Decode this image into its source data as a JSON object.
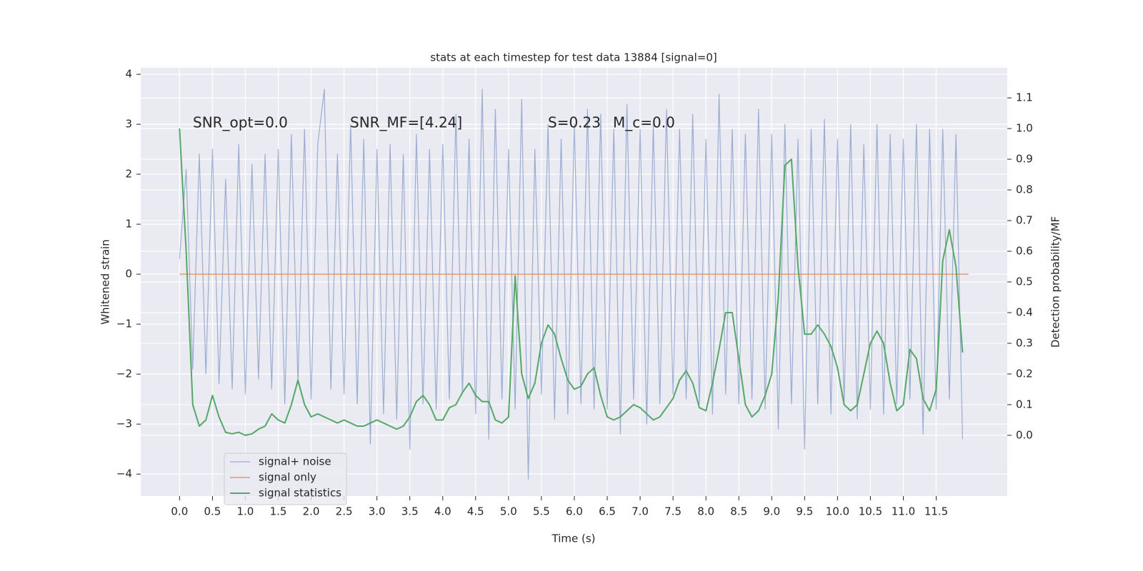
{
  "chart_data": {
    "type": "line",
    "title": "stats at each timestep for test data 13884 [signal=0]",
    "xlabel": "Time (s)",
    "ylabel": "Whitened strain",
    "y2label": "Detection probability/MF",
    "annotations": [
      "SNR_opt=0.0",
      "SNR_MF=[4.24]",
      "S=0.23",
      "M_c=0.0"
    ],
    "grid": true,
    "legend": "lower left",
    "xlim": [
      -0.59,
      12.58
    ],
    "ylim": [
      -4.44,
      4.13
    ],
    "y2lim": [
      -0.198,
      1.198
    ],
    "xticks": [
      {
        "value": 0,
        "label": "0.0"
      },
      0.5,
      {
        "value": 1,
        "label": "1.0"
      },
      1.5,
      {
        "value": 2,
        "label": "2.0"
      },
      2.5,
      {
        "value": 3,
        "label": "3.0"
      },
      3.5,
      {
        "value": 4,
        "label": "4.0"
      },
      4.5,
      {
        "value": 5,
        "label": "5.0"
      },
      5.5,
      {
        "value": 6,
        "label": "6.0"
      },
      6.5,
      {
        "value": 7,
        "label": "7.0"
      },
      7.5,
      {
        "value": 8,
        "label": "8.0"
      },
      8.5,
      {
        "value": 9,
        "label": "9.0"
      },
      9.5,
      {
        "value": 10,
        "label": "10.0"
      },
      10.5,
      {
        "value": 11,
        "label": "11.0"
      },
      11.5
    ],
    "yticks": [
      {
        "value": -4,
        "label": "−4"
      },
      {
        "value": -3,
        "label": "−3"
      },
      {
        "value": -2,
        "label": "−2"
      },
      {
        "value": -1,
        "label": "−1"
      },
      0,
      1,
      2,
      3,
      4
    ],
    "y2ticks": [
      {
        "value": 0,
        "label": "0.0"
      },
      0.1,
      0.2,
      0.3,
      0.4,
      0.5,
      0.6,
      0.7,
      0.8,
      0.9,
      {
        "value": 1,
        "label": "1.0"
      },
      1.1
    ],
    "x": [
      0,
      0.1,
      0.2,
      0.3,
      0.4,
      0.5,
      0.6,
      0.7,
      0.8,
      0.9,
      1,
      1.1,
      1.2,
      1.3,
      1.4,
      1.5,
      1.6,
      1.7,
      1.8,
      1.9,
      2,
      2.1,
      2.2,
      2.3,
      2.4,
      2.5,
      2.6,
      2.7,
      2.8,
      2.9,
      3,
      3.1,
      3.2,
      3.3,
      3.4,
      3.5,
      3.6,
      3.7,
      3.8,
      3.9,
      4,
      4.1,
      4.2,
      4.3,
      4.4,
      4.5,
      4.6,
      4.7,
      4.8,
      4.9,
      5,
      5.1,
      5.2,
      5.3,
      5.4,
      5.5,
      5.6,
      5.7,
      5.8,
      5.9,
      6,
      6.1,
      6.2,
      6.3,
      6.4,
      6.5,
      6.6,
      6.7,
      6.8,
      6.9,
      7,
      7.1,
      7.2,
      7.3,
      7.4,
      7.5,
      7.6,
      7.7,
      7.8,
      7.9,
      8,
      8.1,
      8.2,
      8.3,
      8.4,
      8.5,
      8.6,
      8.7,
      8.8,
      8.9,
      9,
      9.1,
      9.2,
      9.3,
      9.4,
      9.5,
      9.6,
      9.7,
      9.8,
      9.9,
      10,
      10.1,
      10.2,
      10.3,
      10.4,
      10.5,
      10.6,
      10.7,
      10.8,
      10.9,
      11,
      11.1,
      11.2,
      11.3,
      11.4,
      11.5,
      11.6,
      11.7,
      11.8,
      11.9
    ],
    "series": [
      {
        "name": "signal+ noise",
        "color": "#4c72b0",
        "values": [
          0.3,
          2.1,
          -1.9,
          2.4,
          -2.0,
          2.5,
          -2.2,
          1.9,
          -2.3,
          2.6,
          -2.4,
          2.2,
          -2.1,
          2.4,
          -2.3,
          2.5,
          -2.6,
          2.8,
          -2.2,
          2.9,
          -2.5,
          2.6,
          3.7,
          -2.3,
          2.4,
          -2.4,
          3.0,
          -2.6,
          2.7,
          -3.4,
          2.5,
          -2.8,
          2.6,
          -2.9,
          2.4,
          -3.5,
          2.8,
          -2.6,
          2.5,
          -2.7,
          2.6,
          -2.5,
          3.2,
          -2.4,
          2.7,
          -2.8,
          3.7,
          -3.3,
          3.3,
          -2.5,
          2.5,
          -2.7,
          3.5,
          -4.1,
          2.5,
          -2.4,
          3.0,
          -2.9,
          2.7,
          -2.8,
          3.0,
          -2.6,
          3.3,
          -2.7,
          3.2,
          -2.7,
          2.9,
          -3.2,
          3.4,
          -2.5,
          2.9,
          -3.0,
          3.0,
          -2.6,
          3.3,
          -2.4,
          2.9,
          -2.5,
          3.2,
          -2.6,
          2.7,
          -2.8,
          3.6,
          -2.4,
          2.9,
          -2.6,
          2.8,
          -2.5,
          3.3,
          -2.7,
          2.8,
          -3.1,
          3.0,
          -2.6,
          2.7,
          -3.5,
          2.9,
          -2.6,
          3.1,
          -2.8,
          2.7,
          -2.6,
          3.0,
          -2.9,
          2.6,
          -2.7,
          3.0,
          -2.8,
          2.8,
          -2.6,
          2.7,
          -2.5,
          3.0,
          -3.2,
          2.9,
          -2.7,
          2.9,
          -2.5,
          2.8,
          -3.3
        ]
      },
      {
        "name": "signal only",
        "color": "#dd8452",
        "x": [
          0,
          11.99
        ],
        "values": [
          0,
          0
        ]
      },
      {
        "name": "signal statistics",
        "color": "#55a868",
        "axis": "y2",
        "values": [
          1.0,
          0.6,
          0.1,
          0.03,
          0.05,
          0.13,
          0.06,
          0.01,
          0.005,
          0.01,
          0.0,
          0.005,
          0.02,
          0.03,
          0.07,
          0.05,
          0.04,
          0.1,
          0.18,
          0.1,
          0.06,
          0.07,
          0.06,
          0.05,
          0.04,
          0.05,
          0.04,
          0.03,
          0.03,
          0.04,
          0.05,
          0.04,
          0.03,
          0.02,
          0.03,
          0.06,
          0.11,
          0.13,
          0.1,
          0.05,
          0.05,
          0.09,
          0.1,
          0.14,
          0.17,
          0.13,
          0.11,
          0.11,
          0.05,
          0.04,
          0.06,
          0.52,
          0.2,
          0.12,
          0.17,
          0.3,
          0.36,
          0.33,
          0.25,
          0.18,
          0.15,
          0.16,
          0.2,
          0.22,
          0.13,
          0.06,
          0.05,
          0.06,
          0.08,
          0.1,
          0.09,
          0.07,
          0.05,
          0.06,
          0.09,
          0.12,
          0.18,
          0.21,
          0.17,
          0.09,
          0.08,
          0.17,
          0.28,
          0.4,
          0.4,
          0.25,
          0.1,
          0.06,
          0.08,
          0.13,
          0.2,
          0.45,
          0.88,
          0.9,
          0.55,
          0.33,
          0.33,
          0.36,
          0.33,
          0.29,
          0.22,
          0.1,
          0.08,
          0.1,
          0.2,
          0.3,
          0.34,
          0.3,
          0.17,
          0.08,
          0.1,
          0.28,
          0.25,
          0.12,
          0.08,
          0.15,
          0.57,
          0.67,
          0.55,
          0.27
        ]
      }
    ]
  }
}
